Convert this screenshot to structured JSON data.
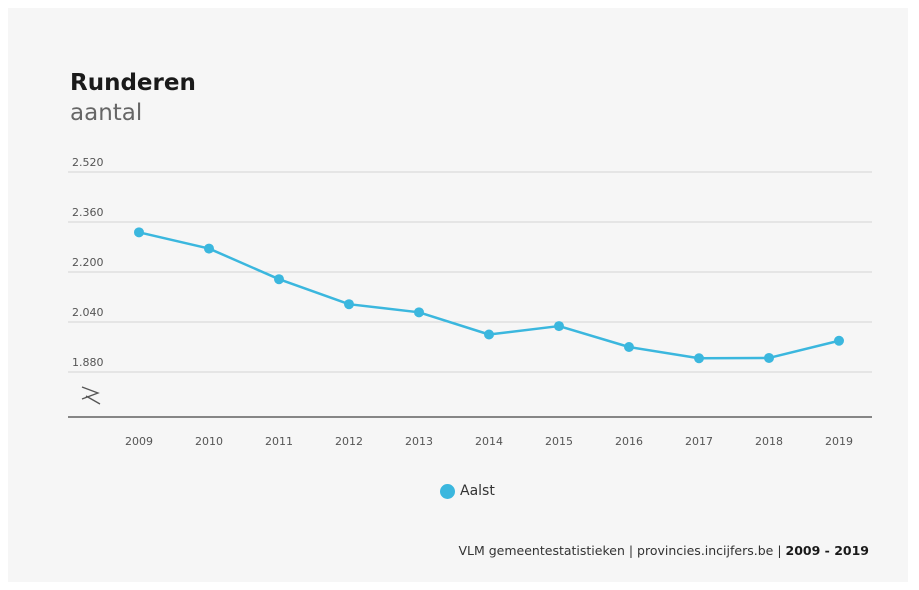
{
  "chart_data": {
    "type": "line",
    "title": "Runderen",
    "subtitle": "aantal",
    "categories": [
      "2009",
      "2010",
      "2011",
      "2012",
      "2013",
      "2014",
      "2015",
      "2016",
      "2017",
      "2018",
      "2019"
    ],
    "series": [
      {
        "name": "Aalst",
        "color": "#3bb7de",
        "values": [
          2327,
          2275,
          2177,
          2097,
          2071,
          2000,
          2027,
          1960,
          1924,
          1925,
          1980
        ]
      }
    ],
    "y_ticks": [
      {
        "value": 1880,
        "label": "1.880"
      },
      {
        "value": 2040,
        "label": "2.040"
      },
      {
        "value": 2200,
        "label": "2.200"
      },
      {
        "value": 2360,
        "label": "2.360"
      },
      {
        "value": 2520,
        "label": "2.520"
      }
    ],
    "ylim": [
      1880,
      2520
    ],
    "axis_break": true,
    "grid": true,
    "legend_position": "bottom-center"
  },
  "source": {
    "text": "VLM gemeentestatistieken | provincies.incijfers.be",
    "separator": " | ",
    "range": "2009 - 2019"
  }
}
